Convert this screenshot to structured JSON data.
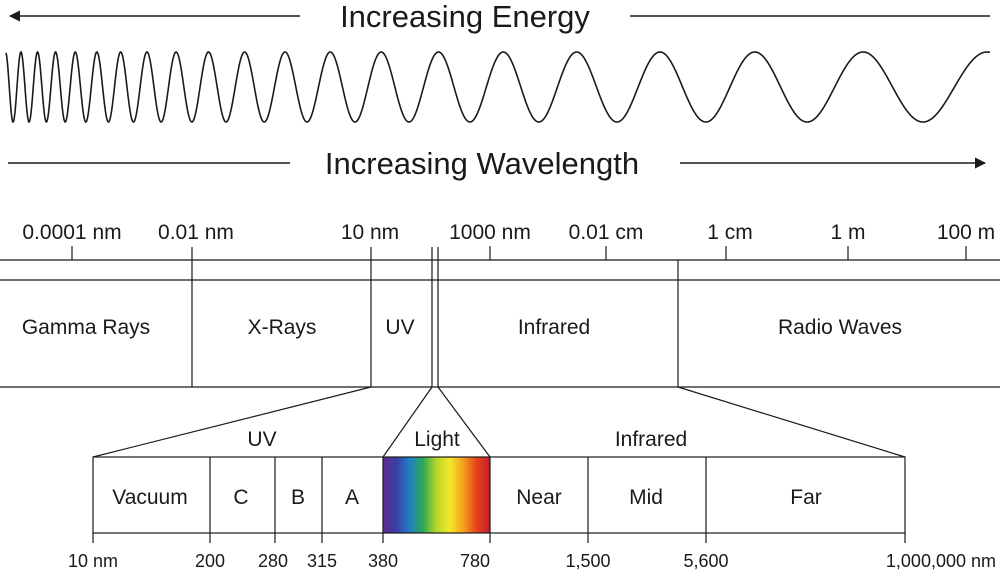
{
  "energy_label": "Increasing Energy",
  "wavelength_label": "Increasing Wavelength",
  "scale_ticks": [
    "0.0001 nm",
    "0.01 nm",
    "10 nm",
    "1000 nm",
    "0.01 cm",
    "1 cm",
    "1 m",
    "100 m"
  ],
  "bands": [
    "Gamma Rays",
    "X-Rays",
    "UV",
    "Infrared",
    "Radio Waves"
  ],
  "detail_headers": {
    "uv": "UV",
    "light": "Light",
    "infrared": "Infrared"
  },
  "detail_cells": [
    "Vacuum",
    "C",
    "B",
    "A",
    "Near",
    "Mid",
    "Far"
  ],
  "detail_ticks": [
    "10 nm",
    "200",
    "280",
    "315",
    "380",
    "780",
    "1,500",
    "5,600",
    "1,000,000 nm"
  ],
  "colors": {
    "ink": "#1a1a1a",
    "background": "#ffffff"
  },
  "visible_spectrum_colors": [
    "#5b2d8e",
    "#3b3fa8",
    "#1f7fc4",
    "#2ea84f",
    "#b8d62c",
    "#f2e82a",
    "#f6a01f",
    "#e8401c",
    "#c0202a"
  ]
}
